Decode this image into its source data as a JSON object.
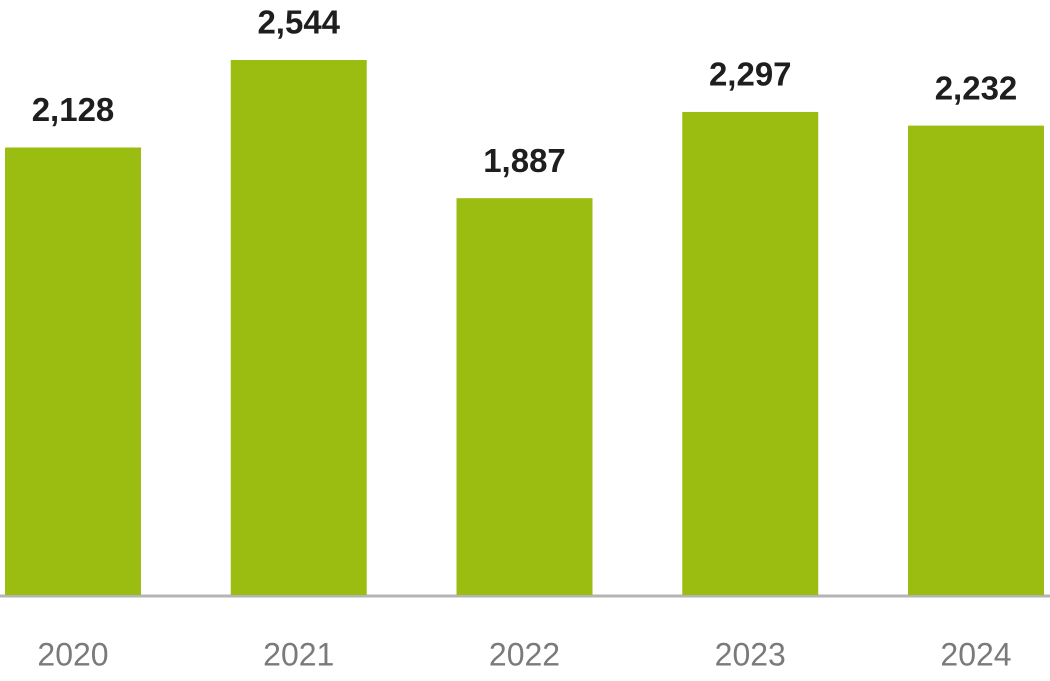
{
  "chart_data": {
    "type": "bar",
    "categories": [
      "2020",
      "2021",
      "2022",
      "2023",
      "2024"
    ],
    "values": [
      2128,
      2544,
      1887,
      2297,
      2232
    ],
    "value_labels": [
      "2,128",
      "2,544",
      "1,887",
      "2,297",
      "2,232"
    ],
    "color": "#9bbd12"
  }
}
